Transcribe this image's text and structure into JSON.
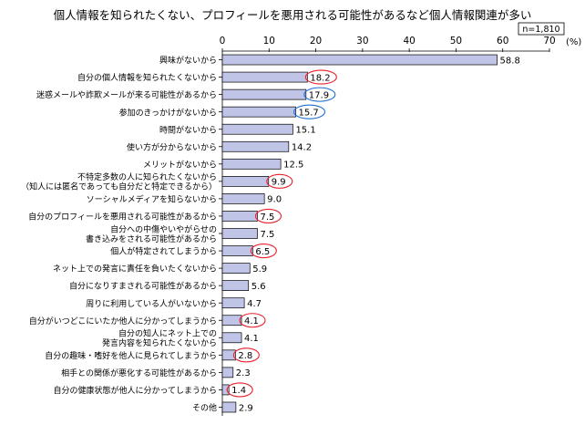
{
  "chart_data": {
    "type": "bar",
    "orientation": "horizontal",
    "title": "個人情報を知られたくない、プロフィールを悪用される可能性があるなど個人情報関連が多い",
    "sample_size": "n=1,810",
    "unit": "(%)",
    "xlim": [
      0,
      70
    ],
    "ticks": [
      0,
      10,
      20,
      30,
      40,
      50,
      60,
      70
    ],
    "grid": false,
    "bar_color": "#c0c4e6",
    "bar_border": "#000000",
    "highlight_colors": {
      "red": "#e8202a",
      "blue": "#1a6fd4"
    },
    "categories": [
      {
        "label": [
          "興味がないから"
        ],
        "value": 58.8,
        "value_label": "58.8",
        "circle": null
      },
      {
        "label": [
          "自分の個人情報を知られたくないから"
        ],
        "value": 18.2,
        "value_label": "18.2",
        "circle": "red"
      },
      {
        "label": [
          "迷惑メールや詐欺メールが来る可能性があるから"
        ],
        "value": 17.9,
        "value_label": "17.9",
        "circle": "blue"
      },
      {
        "label": [
          "参加のきっかけがないから"
        ],
        "value": 15.7,
        "value_label": "15.7",
        "circle": "blue"
      },
      {
        "label": [
          "時間がないから"
        ],
        "value": 15.1,
        "value_label": "15.1",
        "circle": null
      },
      {
        "label": [
          "使い方が分からないから"
        ],
        "value": 14.2,
        "value_label": "14.2",
        "circle": null
      },
      {
        "label": [
          "メリットがないから"
        ],
        "value": 12.5,
        "value_label": "12.5",
        "circle": null
      },
      {
        "label": [
          "不特定多数の人に知られたくないから",
          "（知人には匿名であっても自分だと特定できるから）"
        ],
        "value": 9.9,
        "value_label": "9.9",
        "circle": "red"
      },
      {
        "label": [
          "ソーシャルメディアを知らないから"
        ],
        "value": 9.0,
        "value_label": "9.0",
        "circle": null
      },
      {
        "label": [
          "自分のプロフィールを悪用される可能性があるから"
        ],
        "value": 7.5,
        "value_label": "7.5",
        "circle": "red"
      },
      {
        "label": [
          "自分への中傷やいやがらせの",
          "書き込みをされる可能性があるから"
        ],
        "value": 7.5,
        "value_label": "7.5",
        "circle": null
      },
      {
        "label": [
          "個人が特定されてしまうから"
        ],
        "value": 6.5,
        "value_label": "6.5",
        "circle": "red"
      },
      {
        "label": [
          "ネット上での発言に責任を負いたくないから"
        ],
        "value": 5.9,
        "value_label": "5.9",
        "circle": null
      },
      {
        "label": [
          "自分になりすまされる可能性があるから"
        ],
        "value": 5.6,
        "value_label": "5.6",
        "circle": null
      },
      {
        "label": [
          "周りに利用している人がいないから"
        ],
        "value": 4.7,
        "value_label": "4.7",
        "circle": null
      },
      {
        "label": [
          "自分がいつどこにいたか他人に分かってしまうから"
        ],
        "value": 4.1,
        "value_label": "4.1",
        "circle": "red"
      },
      {
        "label": [
          "自分の知人にネット上での",
          "発言内容を知られたくないから"
        ],
        "value": 4.1,
        "value_label": "4.1",
        "circle": null
      },
      {
        "label": [
          "自分の趣味・嗜好を他人に見られてしまうから"
        ],
        "value": 2.8,
        "value_label": "2.8",
        "circle": "red"
      },
      {
        "label": [
          "相手との関係が悪化する可能性があるから"
        ],
        "value": 2.3,
        "value_label": "2.3",
        "circle": null
      },
      {
        "label": [
          "自分の健康状態が他人に分かってしまうから"
        ],
        "value": 1.4,
        "value_label": "1.4",
        "circle": "red"
      },
      {
        "label": [
          "その他"
        ],
        "value": 2.9,
        "value_label": "2.9",
        "circle": null
      }
    ]
  }
}
